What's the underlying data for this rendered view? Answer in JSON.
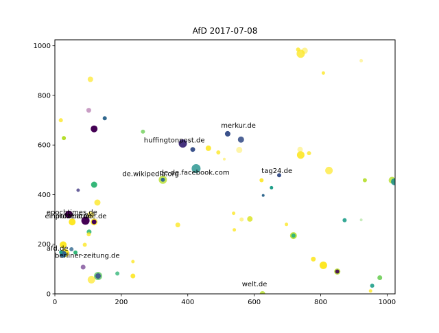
{
  "chart_data": {
    "type": "scatter",
    "title": "AfD    2017-07-08",
    "xlabel": "",
    "ylabel": "",
    "xlim": [
      0,
      1024
    ],
    "ylim": [
      0,
      1024
    ],
    "xticks": [
      "0",
      "200",
      "400",
      "600",
      "800",
      "1000"
    ],
    "yticks": [
      "0",
      "200",
      "400",
      "600",
      "800",
      "1000"
    ],
    "grid": false,
    "legend": "none",
    "colormap": "viridis",
    "points": [
      {
        "x": 118,
        "y": 665,
        "size": 5,
        "color": "#440154",
        "alpha": 1.0
      },
      {
        "x": 150,
        "y": 708,
        "size": 3,
        "color": "#31688e",
        "alpha": 1.0
      },
      {
        "x": 107,
        "y": 865,
        "size": 4,
        "color": "#fde725",
        "alpha": 0.7
      },
      {
        "x": 18,
        "y": 700,
        "size": 3,
        "color": "#fde725",
        "alpha": 0.8
      },
      {
        "x": 27,
        "y": 628,
        "size": 3,
        "color": "#b5de2b",
        "alpha": 1.0
      },
      {
        "x": 102,
        "y": 740,
        "size": 3.5,
        "color": "#a55d9e",
        "alpha": 0.6
      },
      {
        "x": 265,
        "y": 654,
        "size": 3,
        "color": "#6ece58",
        "alpha": 0.8
      },
      {
        "x": 385,
        "y": 606,
        "size": 6,
        "color": "#46327e",
        "alpha": 1.0
      },
      {
        "x": 415,
        "y": 582,
        "size": 3.5,
        "color": "#3b528b",
        "alpha": 1.0
      },
      {
        "x": 462,
        "y": 587,
        "size": 4,
        "color": "#fde725",
        "alpha": 0.9
      },
      {
        "x": 492,
        "y": 570,
        "size": 3,
        "color": "#fde725",
        "alpha": 0.8
      },
      {
        "x": 510,
        "y": 543,
        "size": 2,
        "color": "#fde725",
        "alpha": 0.5
      },
      {
        "x": 520,
        "y": 645,
        "size": 4,
        "color": "#3b528b",
        "alpha": 1.0
      },
      {
        "x": 560,
        "y": 622,
        "size": 4.5,
        "color": "#3b528b",
        "alpha": 0.9
      },
      {
        "x": 555,
        "y": 580,
        "size": 4.5,
        "color": "#fde725",
        "alpha": 0.4
      },
      {
        "x": 425,
        "y": 505,
        "size": 6.5,
        "color": "#21918c",
        "alpha": 0.8
      },
      {
        "x": 325,
        "y": 460,
        "size": 6,
        "color": "#b5de2b",
        "alpha": 0.8
      },
      {
        "x": 325,
        "y": 460,
        "size": 3,
        "color": "#31688e",
        "alpha": 1.0
      },
      {
        "x": 118,
        "y": 440,
        "size": 4.5,
        "color": "#35b779",
        "alpha": 1.0
      },
      {
        "x": 70,
        "y": 418,
        "size": 2.5,
        "color": "#443983",
        "alpha": 0.8
      },
      {
        "x": 128,
        "y": 368,
        "size": 4.5,
        "color": "#fde725",
        "alpha": 0.8
      },
      {
        "x": 42,
        "y": 320,
        "size": 5.5,
        "color": "#440154",
        "alpha": 1.0
      },
      {
        "x": 52,
        "y": 290,
        "size": 5,
        "color": "#fde725",
        "alpha": 1.0
      },
      {
        "x": 92,
        "y": 295,
        "size": 6,
        "color": "#440154",
        "alpha": 1.0
      },
      {
        "x": 108,
        "y": 318,
        "size": 5,
        "color": "#fde725",
        "alpha": 0.6
      },
      {
        "x": 118,
        "y": 290,
        "size": 5,
        "color": "#fde725",
        "alpha": 0.9
      },
      {
        "x": 118,
        "y": 290,
        "size": 3.5,
        "color": "#440154",
        "alpha": 1.0
      },
      {
        "x": 103,
        "y": 250,
        "size": 3.5,
        "color": "#35b779",
        "alpha": 0.9
      },
      {
        "x": 102,
        "y": 240,
        "size": 3,
        "color": "#fde725",
        "alpha": 0.8
      },
      {
        "x": 90,
        "y": 198,
        "size": 3,
        "color": "#fde725",
        "alpha": 0.8
      },
      {
        "x": 25,
        "y": 198,
        "size": 5,
        "color": "#fde725",
        "alpha": 1.0
      },
      {
        "x": 50,
        "y": 180,
        "size": 3,
        "color": "#31688e",
        "alpha": 0.8
      },
      {
        "x": 30,
        "y": 165,
        "size": 6,
        "color": "#fde725",
        "alpha": 1.0
      },
      {
        "x": 25,
        "y": 160,
        "size": 5,
        "color": "#31688e",
        "alpha": 1.0
      },
      {
        "x": 18,
        "y": 168,
        "size": 2.5,
        "color": "#1f9e89",
        "alpha": 1.0
      },
      {
        "x": 62,
        "y": 167,
        "size": 3,
        "color": "#35b779",
        "alpha": 1.0
      },
      {
        "x": 85,
        "y": 108,
        "size": 3.5,
        "color": "#7d4e99",
        "alpha": 0.8
      },
      {
        "x": 110,
        "y": 57,
        "size": 5.5,
        "color": "#fde725",
        "alpha": 0.7
      },
      {
        "x": 130,
        "y": 72,
        "size": 6,
        "color": "#5ec962",
        "alpha": 0.8
      },
      {
        "x": 130,
        "y": 72,
        "size": 4,
        "color": "#3b528b",
        "alpha": 0.9
      },
      {
        "x": 188,
        "y": 82,
        "size": 3,
        "color": "#35b779",
        "alpha": 0.8
      },
      {
        "x": 235,
        "y": 130,
        "size": 2.5,
        "color": "#fde725",
        "alpha": 0.8
      },
      {
        "x": 235,
        "y": 72,
        "size": 3.5,
        "color": "#fde725",
        "alpha": 0.9
      },
      {
        "x": 370,
        "y": 278,
        "size": 3.5,
        "color": "#fde725",
        "alpha": 0.8
      },
      {
        "x": 538,
        "y": 325,
        "size": 2.5,
        "color": "#fde725",
        "alpha": 0.8
      },
      {
        "x": 540,
        "y": 258,
        "size": 2.5,
        "color": "#fde725",
        "alpha": 0.8
      },
      {
        "x": 562,
        "y": 300,
        "size": 3,
        "color": "#fde725",
        "alpha": 0.5
      },
      {
        "x": 587,
        "y": 302,
        "size": 4,
        "color": "#d8e219",
        "alpha": 0.8
      },
      {
        "x": 622,
        "y": 458,
        "size": 3,
        "color": "#fde725",
        "alpha": 0.9
      },
      {
        "x": 627,
        "y": 397,
        "size": 2,
        "color": "#31688e",
        "alpha": 1.0
      },
      {
        "x": 652,
        "y": 428,
        "size": 2.5,
        "color": "#1f9e89",
        "alpha": 1.0
      },
      {
        "x": 675,
        "y": 478,
        "size": 3,
        "color": "#3b528b",
        "alpha": 1.0
      },
      {
        "x": 697,
        "y": 280,
        "size": 2.5,
        "color": "#fde725",
        "alpha": 0.8
      },
      {
        "x": 718,
        "y": 235,
        "size": 5,
        "color": "#b5de2b",
        "alpha": 0.9
      },
      {
        "x": 718,
        "y": 235,
        "size": 3,
        "color": "#35b779",
        "alpha": 1.0
      },
      {
        "x": 738,
        "y": 582,
        "size": 4,
        "color": "#fde725",
        "alpha": 0.4
      },
      {
        "x": 740,
        "y": 560,
        "size": 5.5,
        "color": "#fde725",
        "alpha": 0.9
      },
      {
        "x": 765,
        "y": 567,
        "size": 3,
        "color": "#fde725",
        "alpha": 0.8
      },
      {
        "x": 825,
        "y": 497,
        "size": 5.5,
        "color": "#fde725",
        "alpha": 0.7
      },
      {
        "x": 732,
        "y": 985,
        "size": 3,
        "color": "#fde725",
        "alpha": 0.8
      },
      {
        "x": 740,
        "y": 968,
        "size": 6,
        "color": "#fde725",
        "alpha": 0.8
      },
      {
        "x": 752,
        "y": 980,
        "size": 4.5,
        "color": "#fde725",
        "alpha": 0.5
      },
      {
        "x": 808,
        "y": 890,
        "size": 2.5,
        "color": "#fde725",
        "alpha": 0.8
      },
      {
        "x": 922,
        "y": 940,
        "size": 2.5,
        "color": "#fde725",
        "alpha": 0.4
      },
      {
        "x": 778,
        "y": 140,
        "size": 3.5,
        "color": "#fde725",
        "alpha": 0.9
      },
      {
        "x": 808,
        "y": 115,
        "size": 5.5,
        "color": "#fde725",
        "alpha": 1.0
      },
      {
        "x": 850,
        "y": 90,
        "size": 4.5,
        "color": "#b5de2b",
        "alpha": 0.9
      },
      {
        "x": 850,
        "y": 90,
        "size": 3,
        "color": "#440154",
        "alpha": 0.9
      },
      {
        "x": 872,
        "y": 297,
        "size": 3,
        "color": "#1f9e89",
        "alpha": 0.9
      },
      {
        "x": 922,
        "y": 298,
        "size": 2,
        "color": "#73d056",
        "alpha": 0.4
      },
      {
        "x": 933,
        "y": 458,
        "size": 3,
        "color": "#b5de2b",
        "alpha": 0.9
      },
      {
        "x": 955,
        "y": 33,
        "size": 3,
        "color": "#1f9e89",
        "alpha": 0.9
      },
      {
        "x": 978,
        "y": 65,
        "size": 3.5,
        "color": "#6ece58",
        "alpha": 0.9
      },
      {
        "x": 950,
        "y": 12,
        "size": 2.5,
        "color": "#fde725",
        "alpha": 0.8
      },
      {
        "x": 1015,
        "y": 458,
        "size": 5,
        "color": "#b5de2b",
        "alpha": 0.8
      },
      {
        "x": 1022,
        "y": 452,
        "size": 5,
        "color": "#21918c",
        "alpha": 0.9
      },
      {
        "x": 625,
        "y": 0,
        "size": 4,
        "color": "#b5de2b",
        "alpha": 0.8
      }
    ],
    "annotations": [
      {
        "text": "merkur.de",
        "x": 500,
        "y": 670
      },
      {
        "text": "huffingtonpost.de",
        "x": 268,
        "y": 610
      },
      {
        "text": "de.wikipedia.org",
        "x": 203,
        "y": 475
      },
      {
        "text": "de-de.facebook.com",
        "x": 315,
        "y": 480
      },
      {
        "text": "tag24.de",
        "x": 622,
        "y": 487
      },
      {
        "text": "epochtimes.de",
        "x": -25,
        "y": 320
      },
      {
        "text": "einprozent.de",
        "x": -30,
        "y": 305
      },
      {
        "text": "ruhrbarone.de",
        "x": 8,
        "y": 305
      },
      {
        "text": "afd.de",
        "x": -25,
        "y": 175
      },
      {
        "text": "berliner-zeitung.de",
        "x": 0,
        "y": 145
      },
      {
        "text": "welt.de",
        "x": 563,
        "y": 30
      }
    ]
  }
}
